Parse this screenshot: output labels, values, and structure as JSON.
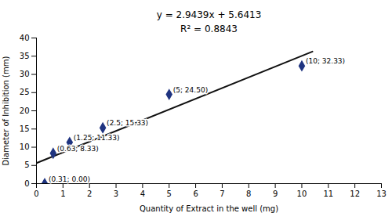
{
  "chart_data": {
    "type": "scatter",
    "annotations": [
      "y = 2.9439x + 5.6413",
      "R² = 0.8843"
    ],
    "xlabel": "Quantity of Extract in the well (mg)",
    "ylabel": "Diameter of Inhibition (mm)",
    "x": [
      0.31,
      0.63,
      1.25,
      2.5,
      5.0,
      10.0
    ],
    "values": [
      0.0,
      8.33,
      11.33,
      15.33,
      24.5,
      32.33
    ],
    "value_labels": [
      "(0.31; 0.00)",
      "(0.63; 8.33)",
      "(1.25; 11.33)",
      "(2.5; 15.33)",
      "(5; 24.50)",
      "(10; 32.33)"
    ],
    "data_labels": true,
    "color": "#1F3480",
    "marker": "diamond",
    "fit": {
      "type": "line",
      "x": [
        0.0,
        10.4
      ],
      "values": [
        5.6413,
        36.25786
      ],
      "color": "#111111"
    },
    "xlim": [
      0,
      13
    ],
    "ylim": [
      0,
      40
    ],
    "xticks": [
      0,
      1,
      2,
      3,
      4,
      5,
      6,
      7,
      8,
      9,
      10,
      11,
      12,
      13
    ],
    "yticks": [
      0,
      5,
      10,
      15,
      20,
      25,
      30,
      35,
      40
    ],
    "grid": false
  }
}
